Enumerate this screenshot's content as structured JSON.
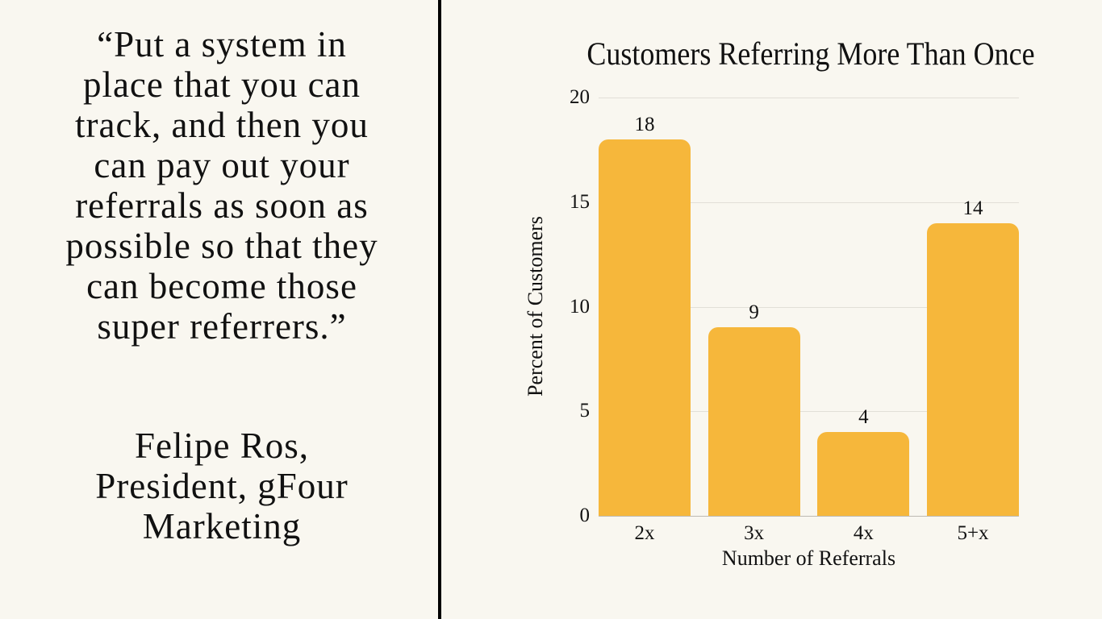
{
  "quote": {
    "text": "“Put a system in\nplace that you can\ntrack, and then you\ncan pay out your\nreferrals as soon as\npossible so that they\ncan become those\nsuper referrers.”",
    "attribution": "Felipe Ros,\nPresident, gFour\nMarketing"
  },
  "colors": {
    "background": "#F9F7F0",
    "bar": "#F6B73B",
    "divider": "#000000",
    "gridline": "#E2DFD7"
  },
  "chart_data": {
    "type": "bar",
    "title": "Customers Referring More Than Once",
    "xlabel": "Number of Referrals",
    "ylabel": "Percent of Customers",
    "categories": [
      "2x",
      "3x",
      "4x",
      "5+x"
    ],
    "values": [
      18,
      9,
      4,
      14
    ],
    "value_labels": [
      "18",
      "9",
      "4",
      "14"
    ],
    "ylim": [
      0,
      20
    ],
    "yticks": [
      "0",
      "5",
      "10",
      "15",
      "20"
    ],
    "grid": true,
    "legend": "none"
  }
}
